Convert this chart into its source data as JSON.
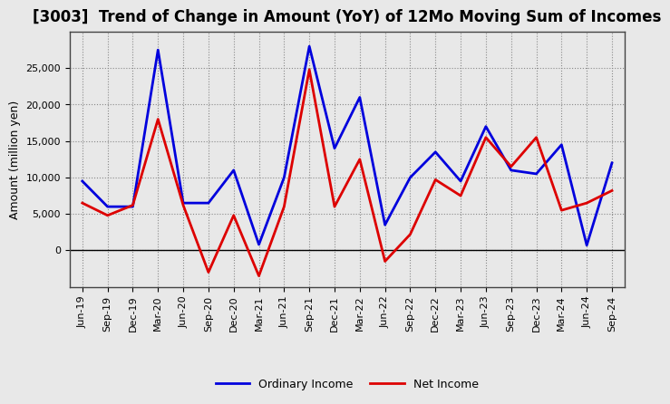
{
  "title": "[3003]  Trend of Change in Amount (YoY) of 12Mo Moving Sum of Incomes",
  "ylabel": "Amount (million yen)",
  "figure_facecolor": "#e8e8e8",
  "axes_facecolor": "#e8e8e8",
  "grid_color": "#888888",
  "x_labels": [
    "Jun-19",
    "Sep-19",
    "Dec-19",
    "Mar-20",
    "Jun-20",
    "Sep-20",
    "Dec-20",
    "Mar-21",
    "Jun-21",
    "Sep-21",
    "Dec-21",
    "Mar-22",
    "Jun-22",
    "Sep-22",
    "Dec-22",
    "Mar-23",
    "Jun-23",
    "Sep-23",
    "Dec-23",
    "Mar-24",
    "Jun-24",
    "Sep-24"
  ],
  "ordinary_income": [
    9500,
    6000,
    6000,
    27500,
    6500,
    6500,
    11000,
    800,
    10000,
    28000,
    14000,
    21000,
    3500,
    10000,
    13500,
    9500,
    17000,
    11000,
    10500,
    14500,
    700,
    12000
  ],
  "net_income": [
    6500,
    4800,
    6200,
    18000,
    6200,
    -3000,
    4800,
    -3500,
    6000,
    24800,
    6000,
    12500,
    -1500,
    2200,
    9700,
    7500,
    15500,
    11500,
    15500,
    5500,
    6500,
    8200
  ],
  "ordinary_income_color": "#0000dd",
  "net_income_color": "#dd0000",
  "line_width": 2.0,
  "ylim_min": -5000,
  "ylim_max": 30000,
  "yticks": [
    0,
    5000,
    10000,
    15000,
    20000,
    25000
  ],
  "legend_ordinary": "Ordinary Income",
  "legend_net": "Net Income",
  "title_fontsize": 12,
  "ylabel_fontsize": 9,
  "tick_fontsize": 8
}
